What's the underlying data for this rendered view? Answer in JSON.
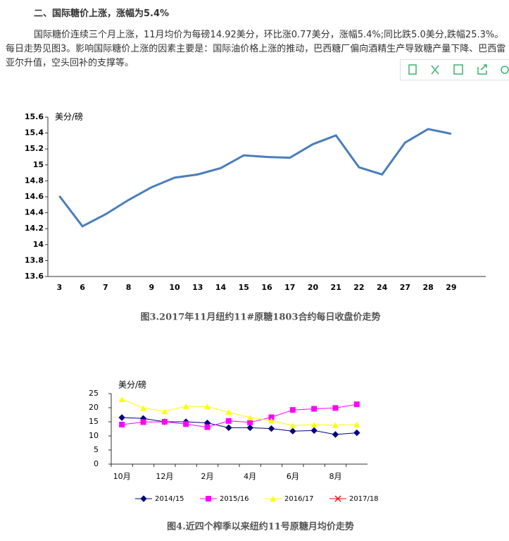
{
  "heading": "二、国际糖价上涨，涨幅为5.4%",
  "paragraph": "国际糖价连续三个月上涨，11月均价为每磅14.92美分，环比涨0.77美分，涨幅5.4%;同比跌5.0美分,跌幅25.3%。每日走势见图3。影响国际糖价上涨的因素主要是：国际油价格上涨的推动，巴西糖厂偏向酒精生产导致糖产量下降、巴西雷亚尔升值，空头回补的支撑等。",
  "chart_data": [
    {
      "type": "line",
      "title": "图3.2017年11月纽约11#原糖1803合约每日收盘价走势",
      "y_label": "美分/磅",
      "categories": [
        "3",
        "6",
        "7",
        "8",
        "9",
        "10",
        "13",
        "14",
        "15",
        "16",
        "17",
        "20",
        "21",
        "22",
        "24",
        "27",
        "28",
        "29",
        null
      ],
      "series": [
        {
          "name": null,
          "color": "#4a7ebb",
          "values": [
            14.61,
            14.23,
            14.38,
            14.56,
            14.72,
            14.84,
            14.88,
            14.96,
            15.12,
            15.1,
            15.09,
            15.26,
            15.37,
            14.97,
            14.88,
            15.28,
            15.45,
            15.39,
            null
          ]
        }
      ],
      "ylim": [
        13.6,
        15.6
      ],
      "yticks": [
        13.6,
        13.8,
        14,
        14.2,
        14.4,
        14.6,
        14.8,
        15,
        15.2,
        15.4,
        15.6
      ]
    },
    {
      "type": "line",
      "title": "图4.近四个榨季以来纽约11号原糖月均价走势",
      "y_label": "美分/磅",
      "categories": [
        "10月",
        null,
        "12月",
        null,
        "2月",
        null,
        "4月",
        null,
        "6月",
        null,
        "8月",
        null
      ],
      "series": [
        {
          "name": "2014/15",
          "color": "#000080",
          "values": [
            16.5,
            16.2,
            15.0,
            15.0,
            14.6,
            12.9,
            12.9,
            12.6,
            11.7,
            11.9,
            10.5,
            11.1
          ]
        },
        {
          "name": "2015/16",
          "color": "#ff00ff",
          "values": [
            14.0,
            14.9,
            15.0,
            14.2,
            13.1,
            15.3,
            14.8,
            16.6,
            19.2,
            19.6,
            19.9,
            21.2
          ]
        },
        {
          "name": "2016/17",
          "color": "#ffff00",
          "values": [
            23.0,
            19.9,
            18.7,
            20.5,
            20.4,
            18.4,
            16.5,
            15.4,
            13.7,
            14.0,
            13.8,
            14.0
          ]
        },
        {
          "name": "2017/18",
          "color": "#ff0000",
          "values": [
            null,
            null,
            null,
            null,
            null,
            null,
            null,
            null,
            null,
            null,
            null,
            null
          ]
        }
      ],
      "ylim": [
        0,
        25
      ],
      "yticks": [
        0,
        5,
        10,
        15,
        20,
        25
      ]
    }
  ]
}
